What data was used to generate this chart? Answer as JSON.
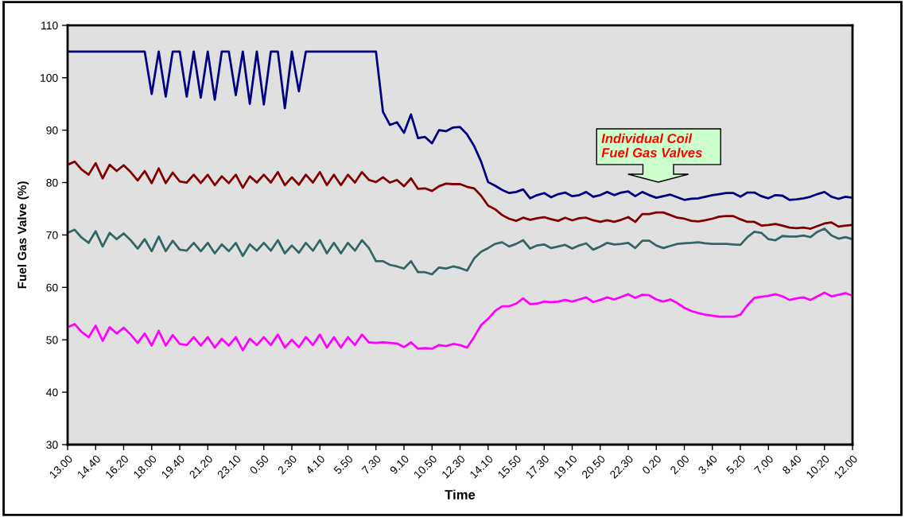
{
  "chart_data": {
    "type": "line",
    "xlabel": "Time",
    "ylabel": "Fuel Gas Valve (%)",
    "categories": [
      "13.00",
      null,
      null,
      null,
      "14.40",
      null,
      null,
      null,
      "16.20",
      null,
      null,
      null,
      "18.00",
      null,
      null,
      null,
      "19.40",
      null,
      null,
      null,
      "21.20",
      null,
      null,
      null,
      "23.10",
      null,
      null,
      null,
      "0.50",
      null,
      null,
      null,
      "2.30",
      null,
      null,
      null,
      "4.10",
      null,
      null,
      null,
      "5.50",
      null,
      null,
      null,
      "7.30",
      null,
      null,
      null,
      "9.10",
      null,
      null,
      null,
      "10.50",
      null,
      null,
      null,
      "12.30",
      null,
      null,
      null,
      "14.10",
      null,
      null,
      null,
      "15.50",
      null,
      null,
      null,
      "17.30",
      null,
      null,
      null,
      "19.10",
      null,
      null,
      null,
      "20.50",
      null,
      null,
      null,
      "22.30",
      null,
      null,
      null,
      "0.20",
      null,
      null,
      null,
      "2.00",
      null,
      null,
      null,
      "3.40",
      null,
      null,
      null,
      "5.20",
      null,
      null,
      null,
      "7.00",
      null,
      null,
      null,
      "8.40",
      null,
      null,
      null,
      "10.20",
      null,
      null,
      null,
      "12.00"
    ],
    "series": [
      {
        "color": "#000080",
        "values": [
          105,
          105,
          105,
          105,
          105,
          105,
          105,
          105,
          105,
          105,
          105,
          105,
          96.9,
          105,
          96.4,
          105,
          105,
          96.4,
          105,
          96.2,
          105,
          95.8,
          105,
          105,
          96.7,
          105,
          95.0,
          105,
          94.9,
          105,
          105,
          94.2,
          105,
          97.4,
          105,
          105,
          105,
          105,
          105,
          105,
          105,
          105,
          105,
          105,
          105,
          93.5,
          91.0,
          91.5,
          89.5,
          93.0,
          88.5,
          88.7,
          87.5,
          90.0,
          89.8,
          90.5,
          90.6,
          89.2,
          87.0,
          84.0,
          80.1,
          79.4,
          78.6,
          78.0,
          78.2,
          78.7,
          77.0,
          77.6,
          78.0,
          77.2,
          77.8,
          78.1,
          77.4,
          77.6,
          78.2,
          77.3,
          77.6,
          78.2,
          77.6,
          78.1,
          78.3,
          77.4,
          78.2,
          77.6,
          77.1,
          77.4,
          77.7,
          77.2,
          76.7,
          76.9,
          77.0,
          77.3,
          77.6,
          77.8,
          78.0,
          78.0,
          77.3,
          78.1,
          78.1,
          77.4,
          77.0,
          77.6,
          77.5,
          76.7,
          76.8,
          77.0,
          77.3,
          77.8,
          78.2,
          77.3,
          76.9,
          77.3,
          77.1
        ]
      },
      {
        "color": "#800000",
        "values": [
          83.4,
          84.0,
          82.5,
          81.5,
          83.7,
          80.8,
          83.4,
          82.2,
          83.3,
          82.0,
          80.4,
          82.2,
          79.9,
          82.7,
          79.9,
          81.9,
          80.2,
          80.0,
          81.5,
          79.9,
          81.5,
          79.5,
          81.2,
          79.9,
          81.5,
          79.0,
          81.2,
          80.0,
          81.5,
          80.0,
          82.0,
          79.5,
          81.0,
          79.6,
          81.5,
          80.0,
          82.0,
          79.5,
          81.5,
          79.5,
          81.5,
          80.0,
          82.0,
          80.5,
          80.1,
          81.0,
          80.0,
          80.5,
          79.3,
          80.8,
          78.8,
          78.9,
          78.4,
          79.3,
          79.8,
          79.7,
          79.7,
          79.2,
          78.9,
          77.5,
          75.6,
          74.9,
          73.8,
          73.1,
          72.7,
          73.3,
          72.9,
          73.2,
          73.4,
          73.0,
          72.7,
          73.3,
          72.8,
          73.2,
          73.3,
          72.8,
          72.5,
          72.8,
          72.5,
          72.9,
          73.4,
          72.5,
          74.0,
          74.0,
          74.3,
          74.3,
          73.8,
          73.3,
          73.1,
          72.7,
          72.6,
          72.8,
          73.1,
          73.5,
          73.6,
          73.6,
          73.0,
          72.5,
          72.5,
          71.8,
          71.9,
          72.1,
          71.8,
          71.4,
          71.3,
          71.4,
          71.2,
          71.7,
          72.2,
          72.4,
          71.6,
          71.8,
          71.9
        ]
      },
      {
        "color": "#336666",
        "values": [
          70.4,
          71.0,
          69.5,
          68.5,
          70.7,
          67.8,
          70.4,
          69.2,
          70.3,
          69.0,
          67.4,
          69.2,
          66.9,
          69.7,
          66.9,
          68.9,
          67.2,
          67.0,
          68.5,
          66.9,
          68.5,
          66.5,
          68.2,
          66.9,
          68.5,
          66.0,
          68.2,
          67.0,
          68.5,
          67.0,
          69.0,
          66.5,
          68.0,
          66.6,
          68.5,
          67.0,
          69.0,
          66.5,
          68.5,
          66.5,
          68.5,
          67.0,
          69.0,
          67.5,
          65.0,
          65.0,
          64.3,
          64.0,
          63.6,
          65.0,
          62.9,
          62.9,
          62.5,
          63.8,
          63.6,
          64.0,
          63.7,
          63.2,
          65.5,
          66.8,
          67.5,
          68.3,
          68.6,
          67.8,
          68.3,
          69.0,
          67.4,
          68.0,
          68.2,
          67.5,
          67.8,
          68.1,
          67.4,
          68.0,
          68.4,
          67.2,
          67.8,
          68.5,
          68.2,
          68.3,
          68.5,
          67.5,
          68.9,
          68.9,
          68.0,
          67.5,
          67.9,
          68.3,
          68.4,
          68.5,
          68.6,
          68.4,
          68.3,
          68.3,
          68.3,
          68.2,
          68.1,
          69.6,
          70.6,
          70.4,
          69.2,
          69.0,
          69.8,
          69.7,
          69.7,
          69.9,
          69.6,
          70.6,
          71.2,
          69.9,
          69.3,
          69.6,
          69.2
        ]
      },
      {
        "color": "#ff00ff",
        "values": [
          52.4,
          53.0,
          51.5,
          50.5,
          52.7,
          49.8,
          52.4,
          51.2,
          52.3,
          51.0,
          49.4,
          51.2,
          48.9,
          51.7,
          48.9,
          50.9,
          49.2,
          49.0,
          50.5,
          48.9,
          50.5,
          48.5,
          50.2,
          48.9,
          50.5,
          48.0,
          50.2,
          49.0,
          50.5,
          49.0,
          51.0,
          48.5,
          50.0,
          48.6,
          50.5,
          49.0,
          51.0,
          48.5,
          50.5,
          48.5,
          50.5,
          49.0,
          51.0,
          49.5,
          49.4,
          49.5,
          49.4,
          49.3,
          48.6,
          49.5,
          48.3,
          48.4,
          48.3,
          49.0,
          48.8,
          49.2,
          49.0,
          48.5,
          50.5,
          52.8,
          54.0,
          55.5,
          56.4,
          56.4,
          56.9,
          57.9,
          56.8,
          56.9,
          57.3,
          57.2,
          57.3,
          57.6,
          57.3,
          57.7,
          58.1,
          57.2,
          57.6,
          58.1,
          57.7,
          58.2,
          58.7,
          58.0,
          58.6,
          58.5,
          57.7,
          57.3,
          57.7,
          57.0,
          56.1,
          55.5,
          55.1,
          54.8,
          54.6,
          54.4,
          54.4,
          54.4,
          54.8,
          56.6,
          58.0,
          58.2,
          58.4,
          58.7,
          58.3,
          57.6,
          57.9,
          58.1,
          57.6,
          58.3,
          59.0,
          58.3,
          58.6,
          58.9,
          58.4
        ]
      }
    ],
    "ylim": [
      30,
      110
    ],
    "yticks": [
      30,
      40,
      50,
      60,
      70,
      80,
      90,
      100,
      110
    ],
    "grid": false,
    "legend": false,
    "annotations": [
      "Individual Coil\nFuel Gas Valves"
    ]
  }
}
